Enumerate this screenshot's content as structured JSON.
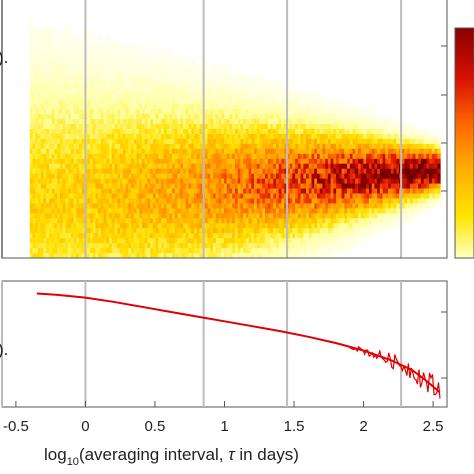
{
  "chart_data": [
    {
      "type": "heatmap",
      "panel": "top",
      "x_range": [
        -0.6,
        2.6
      ],
      "description_of_density": "counts concentrated around a central band that narrows and darkens toward larger tau",
      "x_extent": [
        -0.4,
        2.55
      ],
      "vertical_lines_x": [
        -0.6,
        0.0,
        0.85,
        1.45,
        2.27
      ],
      "colormap": [
        "#ffffff",
        "#ffffa0",
        "#ffe000",
        "#ffb000",
        "#ff7a00",
        "#e82000",
        "#a00000",
        "#6a0000"
      ],
      "colorbar": true,
      "y_label_fragment": ").",
      "grid": false
    },
    {
      "type": "line",
      "panel": "bottom",
      "x_range": [
        -0.6,
        2.6
      ],
      "color": "#e00000",
      "vertical_lines_x": [
        -0.6,
        0.0,
        0.85,
        1.45,
        2.27
      ],
      "series": [
        {
          "x": [
            -0.35,
            -0.2,
            0.0,
            0.2,
            0.4,
            0.6,
            0.8,
            1.0,
            1.2,
            1.4,
            1.6,
            1.8,
            2.0,
            2.2,
            2.35,
            2.45,
            2.55
          ],
          "y": [
            0.0,
            -0.02,
            -0.06,
            -0.12,
            -0.19,
            -0.26,
            -0.33,
            -0.4,
            -0.47,
            -0.54,
            -0.62,
            -0.71,
            -0.82,
            -0.96,
            -1.1,
            -1.25,
            -1.42
          ]
        }
      ],
      "y_label_fragment": ").",
      "xlabel_parts": {
        "pre": "log",
        "sub": "10",
        "post": "(averaging interval, ",
        "tau": "τ",
        "tail": " in days)"
      },
      "xticks": [
        "-0.5",
        "0",
        "0.5",
        "1",
        "1.5",
        "2",
        "2.5"
      ],
      "xtick_values": [
        -0.5,
        0,
        0.5,
        1,
        1.5,
        2,
        2.5
      ]
    }
  ]
}
